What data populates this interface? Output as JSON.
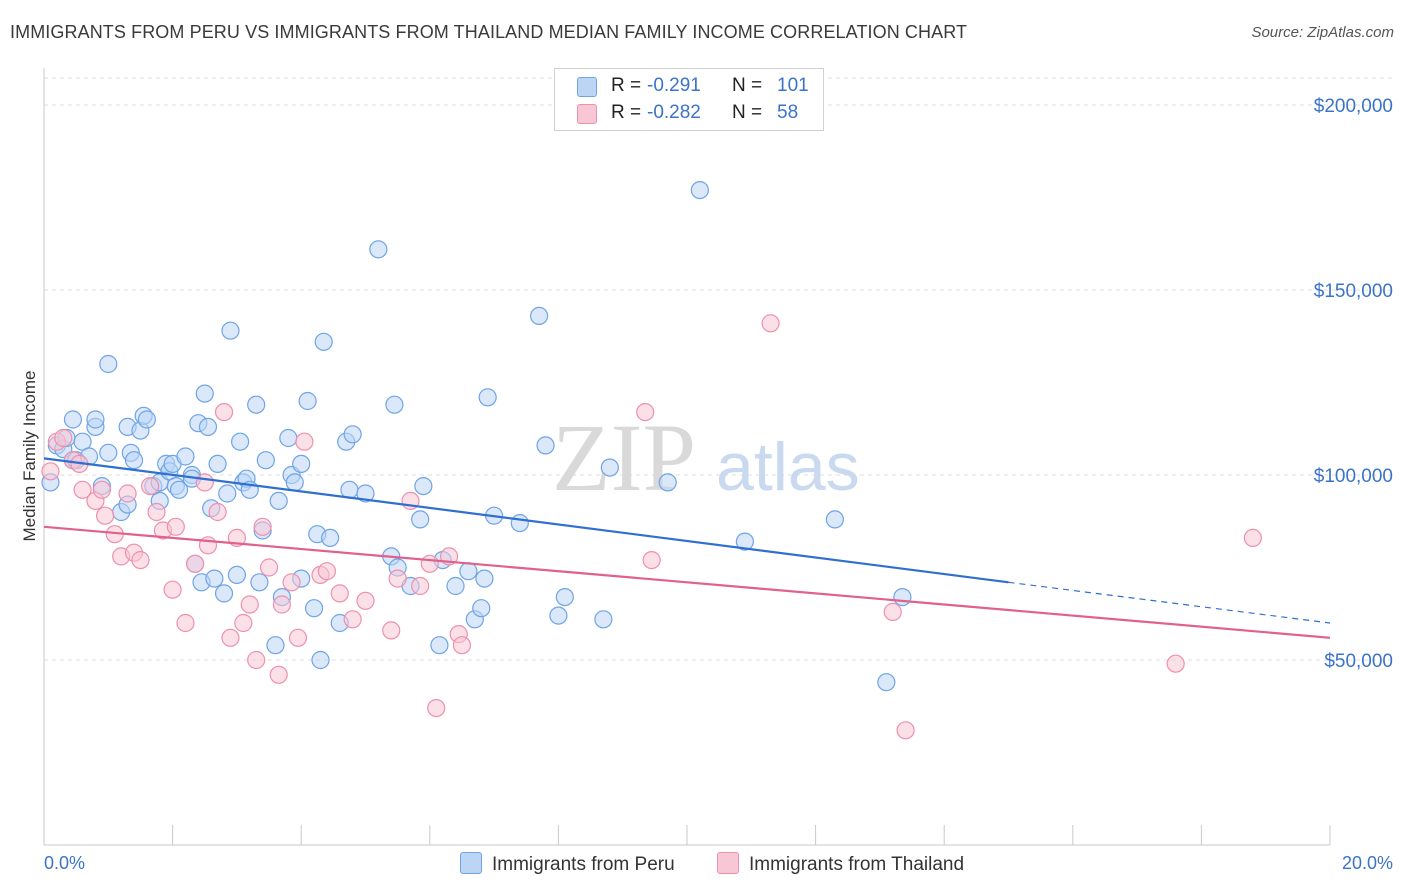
{
  "title": "IMMIGRANTS FROM PERU VS IMMIGRANTS FROM THAILAND MEDIAN FAMILY INCOME CORRELATION CHART",
  "source": "Source: ZipAtlas.com",
  "watermark": {
    "zip": "ZIP",
    "atlas": "atlas"
  },
  "legend": {
    "rows": [
      {
        "r_label": "R =",
        "r_value": "-0.291",
        "n_label": "N =",
        "n_value": "101",
        "color": "#6fa4e6",
        "fill": "#bcd5f5"
      },
      {
        "r_label": "R =",
        "r_value": "-0.282",
        "n_label": "N =",
        "n_value": "58",
        "color": "#ee90ad",
        "fill": "#f8c7d6"
      }
    ]
  },
  "bottom_legend": {
    "peru": "Immigrants from Peru",
    "thailand": "Immigrants from Thailand"
  },
  "chart_data": {
    "type": "scatter",
    "title": "IMMIGRANTS FROM PERU VS IMMIGRANTS FROM THAILAND MEDIAN FAMILY INCOME CORRELATION CHART",
    "xlabel": "",
    "ylabel": "Median Family Income",
    "xlim": [
      0,
      20
    ],
    "ylim": [
      0,
      210000
    ],
    "x_tick_labels": [
      "0.0%",
      "20.0%"
    ],
    "y_ticks": [
      50000,
      100000,
      150000,
      200000
    ],
    "y_tick_labels": [
      "$50,000",
      "$100,000",
      "$150,000",
      "$200,000"
    ],
    "grid": true,
    "legend_position": "top-center",
    "colors": {
      "peru": "#3b73c8",
      "thailand": "#e0608e"
    },
    "series": [
      {
        "name": "Immigrants from Peru",
        "color": "#3b73c8",
        "trend": {
          "x": [
            0,
            15.0
          ],
          "y": [
            104500,
            71000
          ],
          "dashed_to": [
            20,
            60000
          ]
        },
        "points": [
          [
            0.1,
            98000
          ],
          [
            0.2,
            108000
          ],
          [
            0.3,
            107000
          ],
          [
            0.35,
            110000
          ],
          [
            0.45,
            104000
          ],
          [
            0.5,
            104000
          ],
          [
            0.45,
            115000
          ],
          [
            0.6,
            109000
          ],
          [
            0.7,
            105000
          ],
          [
            0.8,
            113000
          ],
          [
            0.8,
            115000
          ],
          [
            0.9,
            97000
          ],
          [
            1.0,
            106000
          ],
          [
            1.0,
            130000
          ],
          [
            1.2,
            90000
          ],
          [
            1.3,
            92000
          ],
          [
            1.3,
            113000
          ],
          [
            1.35,
            106000
          ],
          [
            1.4,
            104000
          ],
          [
            1.5,
            112000
          ],
          [
            1.55,
            116000
          ],
          [
            1.6,
            115000
          ],
          [
            1.7,
            97000
          ],
          [
            1.8,
            98000
          ],
          [
            1.8,
            93000
          ],
          [
            1.9,
            103000
          ],
          [
            1.95,
            101000
          ],
          [
            2.0,
            103000
          ],
          [
            2.05,
            97000
          ],
          [
            2.1,
            96000
          ],
          [
            2.2,
            105000
          ],
          [
            2.3,
            100000
          ],
          [
            2.3,
            99000
          ],
          [
            2.35,
            76000
          ],
          [
            2.4,
            114000
          ],
          [
            2.45,
            71000
          ],
          [
            2.5,
            122000
          ],
          [
            2.55,
            113000
          ],
          [
            2.6,
            91000
          ],
          [
            2.65,
            72000
          ],
          [
            2.7,
            103000
          ],
          [
            2.8,
            68000
          ],
          [
            2.85,
            95000
          ],
          [
            2.9,
            139000
          ],
          [
            3.0,
            73000
          ],
          [
            3.05,
            109000
          ],
          [
            3.1,
            98000
          ],
          [
            3.15,
            99000
          ],
          [
            3.2,
            96000
          ],
          [
            3.3,
            119000
          ],
          [
            3.35,
            71000
          ],
          [
            3.4,
            85000
          ],
          [
            3.45,
            104000
          ],
          [
            3.6,
            54000
          ],
          [
            3.65,
            93000
          ],
          [
            3.7,
            67000
          ],
          [
            3.8,
            110000
          ],
          [
            3.85,
            100000
          ],
          [
            3.9,
            98000
          ],
          [
            4.0,
            103000
          ],
          [
            4.0,
            72000
          ],
          [
            4.1,
            120000
          ],
          [
            4.2,
            64000
          ],
          [
            4.25,
            84000
          ],
          [
            4.3,
            50000
          ],
          [
            4.35,
            136000
          ],
          [
            4.45,
            83000
          ],
          [
            4.6,
            60000
          ],
          [
            4.7,
            109000
          ],
          [
            4.75,
            96000
          ],
          [
            4.8,
            111000
          ],
          [
            5.0,
            95000
          ],
          [
            5.2,
            161000
          ],
          [
            5.4,
            78000
          ],
          [
            5.45,
            119000
          ],
          [
            5.5,
            75000
          ],
          [
            5.7,
            70000
          ],
          [
            5.85,
            88000
          ],
          [
            5.9,
            97000
          ],
          [
            6.15,
            54000
          ],
          [
            6.2,
            77000
          ],
          [
            6.4,
            70000
          ],
          [
            6.6,
            74000
          ],
          [
            6.7,
            61000
          ],
          [
            6.8,
            64000
          ],
          [
            6.85,
            72000
          ],
          [
            6.9,
            121000
          ],
          [
            7.0,
            89000
          ],
          [
            7.4,
            87000
          ],
          [
            7.7,
            143000
          ],
          [
            7.8,
            108000
          ],
          [
            8.0,
            62000
          ],
          [
            8.1,
            67000
          ],
          [
            8.7,
            61000
          ],
          [
            8.8,
            102000
          ],
          [
            9.7,
            98000
          ],
          [
            10.2,
            177000
          ],
          [
            10.9,
            82000
          ],
          [
            12.3,
            88000
          ],
          [
            13.1,
            44000
          ],
          [
            13.35,
            67000
          ]
        ]
      },
      {
        "name": "Immigrants from Thailand",
        "color": "#e0608e",
        "trend": {
          "x": [
            0,
            20
          ],
          "y": [
            86000,
            56000
          ]
        },
        "points": [
          [
            0.1,
            101000
          ],
          [
            0.2,
            109000
          ],
          [
            0.3,
            110000
          ],
          [
            0.45,
            104000
          ],
          [
            0.55,
            103000
          ],
          [
            0.6,
            96000
          ],
          [
            0.8,
            93000
          ],
          [
            0.9,
            96000
          ],
          [
            0.95,
            89000
          ],
          [
            1.1,
            84000
          ],
          [
            1.2,
            78000
          ],
          [
            1.3,
            95000
          ],
          [
            1.4,
            79000
          ],
          [
            1.5,
            77000
          ],
          [
            1.65,
            97000
          ],
          [
            1.75,
            90000
          ],
          [
            1.85,
            85000
          ],
          [
            2.0,
            69000
          ],
          [
            2.05,
            86000
          ],
          [
            2.2,
            60000
          ],
          [
            2.35,
            76000
          ],
          [
            2.5,
            98000
          ],
          [
            2.55,
            81000
          ],
          [
            2.7,
            90000
          ],
          [
            2.8,
            117000
          ],
          [
            2.9,
            56000
          ],
          [
            3.0,
            83000
          ],
          [
            3.1,
            60000
          ],
          [
            3.2,
            65000
          ],
          [
            3.3,
            50000
          ],
          [
            3.4,
            86000
          ],
          [
            3.5,
            75000
          ],
          [
            3.65,
            46000
          ],
          [
            3.7,
            65000
          ],
          [
            3.85,
            71000
          ],
          [
            3.95,
            56000
          ],
          [
            4.05,
            109000
          ],
          [
            4.3,
            73000
          ],
          [
            4.4,
            74000
          ],
          [
            4.6,
            68000
          ],
          [
            4.8,
            61000
          ],
          [
            5.0,
            66000
          ],
          [
            5.4,
            58000
          ],
          [
            5.5,
            72000
          ],
          [
            5.7,
            93000
          ],
          [
            5.85,
            70000
          ],
          [
            6.0,
            76000
          ],
          [
            6.1,
            37000
          ],
          [
            6.3,
            78000
          ],
          [
            6.45,
            57000
          ],
          [
            6.5,
            54000
          ],
          [
            9.35,
            117000
          ],
          [
            9.45,
            77000
          ],
          [
            11.3,
            141000
          ],
          [
            13.2,
            63000
          ],
          [
            13.4,
            31000
          ],
          [
            17.6,
            49000
          ],
          [
            18.8,
            83000
          ]
        ]
      }
    ]
  }
}
